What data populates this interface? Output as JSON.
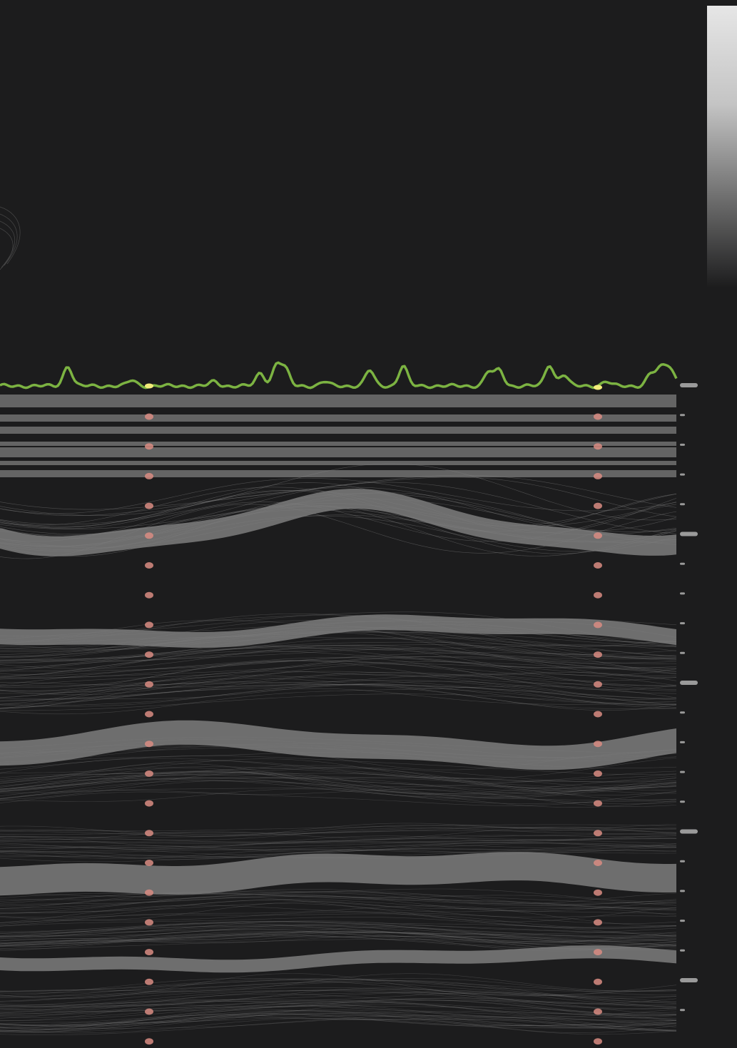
{
  "colors": {
    "background": "#1c1c1d",
    "activity_trace": "#7cb342",
    "highlight": "#f3ec7a",
    "band": "#7c7c7c",
    "flow_line": "#8a8a8a",
    "marker_dot": "#d98c82",
    "tick": "#9a9a9a"
  },
  "diagram": {
    "marker_columns": 2,
    "marker_rows": 23,
    "tick_count": 22,
    "highlighted_points": 2
  }
}
